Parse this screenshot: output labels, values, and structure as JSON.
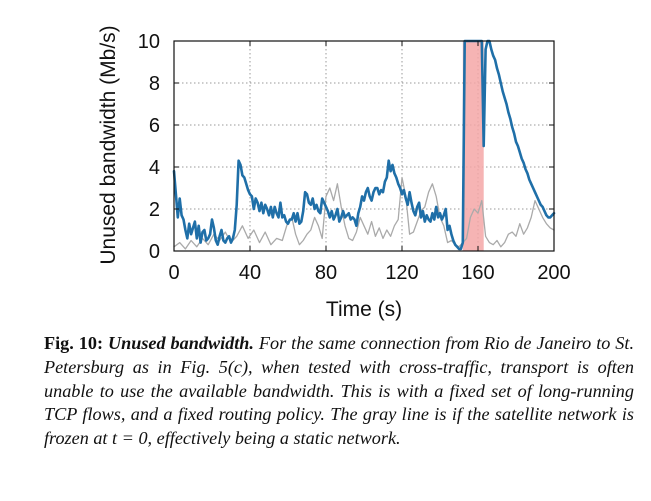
{
  "chart_data": {
    "type": "line",
    "xlabel": "Time (s)",
    "ylabel": "Unused bandwidth (Mb/s)",
    "xlim": [
      0,
      200
    ],
    "ylim": [
      0,
      10
    ],
    "x_ticks": [
      "0",
      "40",
      "80",
      "120",
      "160",
      "200"
    ],
    "y_ticks": [
      "0",
      "2",
      "4",
      "6",
      "8",
      "10"
    ],
    "grid": true,
    "highlight": {
      "x_start": 152,
      "x_end": 163,
      "color": "#f4a7a7"
    },
    "series": [
      {
        "color": "#1f6fa8",
        "points": [
          [
            0,
            3.8
          ],
          [
            1,
            2.7
          ],
          [
            2,
            1.6
          ],
          [
            3,
            2.5
          ],
          [
            4,
            1.7
          ],
          [
            5,
            1.5
          ],
          [
            6,
            1.0
          ],
          [
            7,
            0.6
          ],
          [
            8,
            1.3
          ],
          [
            9,
            0.8
          ],
          [
            10,
            1.1
          ],
          [
            11,
            1.4
          ],
          [
            12,
            0.6
          ],
          [
            13,
            1.2
          ],
          [
            14,
            0.4
          ],
          [
            15,
            0.9
          ],
          [
            16,
            1.0
          ],
          [
            17,
            0.5
          ],
          [
            18,
            0.6
          ],
          [
            19,
            0.8
          ],
          [
            20,
            1.5
          ],
          [
            21,
            1.1
          ],
          [
            22,
            0.5
          ],
          [
            23,
            0.3
          ],
          [
            24,
            0.7
          ],
          [
            25,
            1.0
          ],
          [
            26,
            0.5
          ],
          [
            27,
            0.4
          ],
          [
            28,
            0.6
          ],
          [
            29,
            0.7
          ],
          [
            30,
            0.4
          ],
          [
            31,
            0.6
          ],
          [
            32,
            1.0
          ],
          [
            33,
            2.2
          ],
          [
            34,
            4.3
          ],
          [
            35,
            4.1
          ],
          [
            36,
            3.6
          ],
          [
            37,
            3.5
          ],
          [
            38,
            3.2
          ],
          [
            39,
            2.9
          ],
          [
            40,
            2.7
          ],
          [
            41,
            2.6
          ],
          [
            42,
            2.0
          ],
          [
            43,
            2.5
          ],
          [
            44,
            2.3
          ],
          [
            45,
            1.9
          ],
          [
            46,
            2.3
          ],
          [
            47,
            1.8
          ],
          [
            48,
            2.2
          ],
          [
            49,
            2.0
          ],
          [
            50,
            1.7
          ],
          [
            51,
            2.1
          ],
          [
            52,
            1.6
          ],
          [
            53,
            2.1
          ],
          [
            54,
            1.8
          ],
          [
            55,
            1.6
          ],
          [
            56,
            2.3
          ],
          [
            57,
            1.6
          ],
          [
            58,
            1.7
          ],
          [
            59,
            1.4
          ],
          [
            60,
            1.3
          ],
          [
            61,
            1.5
          ],
          [
            62,
            1.5
          ],
          [
            63,
            1.8
          ],
          [
            64,
            1.4
          ],
          [
            65,
            1.8
          ],
          [
            66,
            1.3
          ],
          [
            67,
            1.4
          ],
          [
            68,
            1.9
          ],
          [
            69,
            2.8
          ],
          [
            70,
            2.7
          ],
          [
            71,
            2.3
          ],
          [
            72,
            2.2
          ],
          [
            73,
            2.5
          ],
          [
            74,
            2.0
          ],
          [
            75,
            2.2
          ],
          [
            76,
            1.9
          ],
          [
            77,
            1.8
          ],
          [
            78,
            2.5
          ],
          [
            79,
            2.3
          ],
          [
            80,
            2.1
          ],
          [
            81,
            1.9
          ],
          [
            82,
            1.6
          ],
          [
            83,
            1.9
          ],
          [
            84,
            1.5
          ],
          [
            85,
            1.7
          ],
          [
            86,
            2.0
          ],
          [
            87,
            1.4
          ],
          [
            88,
            1.6
          ],
          [
            89,
            1.9
          ],
          [
            90,
            1.6
          ],
          [
            91,
            1.7
          ],
          [
            92,
            1.8
          ],
          [
            93,
            1.5
          ],
          [
            94,
            1.6
          ],
          [
            95,
            1.5
          ],
          [
            96,
            1.2
          ],
          [
            97,
            1.8
          ],
          [
            98,
            2.1
          ],
          [
            99,
            2.6
          ],
          [
            100,
            2.4
          ],
          [
            101,
            2.8
          ],
          [
            102,
            3.0
          ],
          [
            103,
            2.6
          ],
          [
            104,
            2.4
          ],
          [
            105,
            2.8
          ],
          [
            106,
            3.0
          ],
          [
            107,
            3.0
          ],
          [
            108,
            2.7
          ],
          [
            109,
            2.9
          ],
          [
            110,
            2.8
          ],
          [
            111,
            3.3
          ],
          [
            112,
            3.5
          ],
          [
            113,
            4.3
          ],
          [
            114,
            3.8
          ],
          [
            115,
            4.1
          ],
          [
            116,
            3.7
          ],
          [
            117,
            3.5
          ],
          [
            118,
            3.2
          ],
          [
            119,
            3.0
          ],
          [
            120,
            2.7
          ],
          [
            121,
            2.9
          ],
          [
            122,
            2.5
          ],
          [
            123,
            2.2
          ],
          [
            124,
            2.8
          ],
          [
            125,
            2.3
          ],
          [
            126,
            1.9
          ],
          [
            127,
            1.7
          ],
          [
            128,
            2.1
          ],
          [
            129,
            2.3
          ],
          [
            130,
            1.6
          ],
          [
            131,
            1.9
          ],
          [
            132,
            1.4
          ],
          [
            133,
            1.7
          ],
          [
            134,
            1.5
          ],
          [
            135,
            1.4
          ],
          [
            136,
            1.8
          ],
          [
            137,
            1.5
          ],
          [
            138,
            2.1
          ],
          [
            139,
            1.6
          ],
          [
            140,
            1.8
          ],
          [
            141,
            1.5
          ],
          [
            142,
            1.7
          ],
          [
            143,
            2.0
          ],
          [
            144,
            1.0
          ],
          [
            145,
            1.2
          ],
          [
            146,
            0.8
          ],
          [
            147,
            0.5
          ],
          [
            148,
            0.3
          ],
          [
            149,
            0.2
          ],
          [
            150,
            0.1
          ],
          [
            151,
            0.1
          ],
          [
            152,
            0.4
          ],
          [
            153,
            10
          ],
          [
            154,
            10
          ],
          [
            155,
            10
          ],
          [
            156,
            10
          ],
          [
            157,
            10
          ],
          [
            158,
            10
          ],
          [
            159,
            10
          ],
          [
            160,
            10
          ],
          [
            161,
            10
          ],
          [
            162,
            10
          ],
          [
            163,
            5.0
          ],
          [
            164,
            9.6
          ],
          [
            165,
            10
          ],
          [
            166,
            10
          ],
          [
            167,
            9.6
          ],
          [
            168,
            9.3
          ],
          [
            169,
            9.1
          ],
          [
            170,
            8.7
          ],
          [
            171,
            8.4
          ],
          [
            172,
            8.0
          ],
          [
            173,
            7.6
          ],
          [
            174,
            7.3
          ],
          [
            175,
            7.0
          ],
          [
            176,
            6.6
          ],
          [
            177,
            6.3
          ],
          [
            178,
            5.9
          ],
          [
            179,
            5.6
          ],
          [
            180,
            5.2
          ],
          [
            181,
            5.0
          ],
          [
            182,
            4.7
          ],
          [
            183,
            4.4
          ],
          [
            184,
            4.2
          ],
          [
            185,
            3.9
          ],
          [
            186,
            3.7
          ],
          [
            187,
            3.4
          ],
          [
            188,
            3.2
          ],
          [
            189,
            3.0
          ],
          [
            190,
            2.8
          ],
          [
            191,
            2.6
          ],
          [
            192,
            2.4
          ],
          [
            193,
            2.2
          ],
          [
            194,
            2.1
          ],
          [
            195,
            1.9
          ],
          [
            196,
            1.7
          ],
          [
            197,
            1.6
          ],
          [
            198,
            1.6
          ],
          [
            199,
            1.7
          ],
          [
            200,
            1.8
          ]
        ]
      },
      {
        "color": "#aaaaaa",
        "points": [
          [
            0,
            0.2
          ],
          [
            3,
            0.4
          ],
          [
            6,
            0.1
          ],
          [
            9,
            0.5
          ],
          [
            12,
            0.2
          ],
          [
            15,
            0.6
          ],
          [
            18,
            0.3
          ],
          [
            21,
            0.8
          ],
          [
            24,
            0.5
          ],
          [
            27,
            0.9
          ],
          [
            30,
            0.4
          ],
          [
            33,
            0.7
          ],
          [
            36,
            1.2
          ],
          [
            39,
            0.6
          ],
          [
            42,
            1.0
          ],
          [
            45,
            0.4
          ],
          [
            48,
            0.9
          ],
          [
            51,
            0.3
          ],
          [
            54,
            0.6
          ],
          [
            57,
            0.5
          ],
          [
            60,
            1.4
          ],
          [
            62,
            1.6
          ],
          [
            64,
            0.8
          ],
          [
            66,
            0.3
          ],
          [
            68,
            0.5
          ],
          [
            70,
            0.8
          ],
          [
            72,
            1.0
          ],
          [
            74,
            1.6
          ],
          [
            76,
            1.2
          ],
          [
            78,
            0.6
          ],
          [
            80,
            2.6
          ],
          [
            82,
            3.0
          ],
          [
            84,
            2.4
          ],
          [
            86,
            3.2
          ],
          [
            88,
            2.1
          ],
          [
            90,
            1.2
          ],
          [
            92,
            0.6
          ],
          [
            94,
            0.5
          ],
          [
            96,
            0.9
          ],
          [
            98,
            1.6
          ],
          [
            100,
            1.2
          ],
          [
            102,
            0.8
          ],
          [
            104,
            1.4
          ],
          [
            106,
            0.7
          ],
          [
            108,
            1.1
          ],
          [
            110,
            0.6
          ],
          [
            112,
            1.0
          ],
          [
            114,
            0.7
          ],
          [
            116,
            1.2
          ],
          [
            118,
            1.5
          ],
          [
            120,
            3.5
          ],
          [
            122,
            2.6
          ],
          [
            124,
            0.8
          ],
          [
            126,
            0.9
          ],
          [
            128,
            1.4
          ],
          [
            130,
            1.9
          ],
          [
            132,
            2.1
          ],
          [
            134,
            2.8
          ],
          [
            136,
            3.2
          ],
          [
            138,
            2.6
          ],
          [
            140,
            1.6
          ],
          [
            142,
            1.2
          ],
          [
            144,
            0.4
          ],
          [
            146,
            0.5
          ],
          [
            148,
            0.3
          ],
          [
            150,
            0.2
          ],
          [
            152,
            0.4
          ],
          [
            154,
            0.6
          ],
          [
            156,
            1.6
          ],
          [
            158,
            2.0
          ],
          [
            160,
            1.8
          ],
          [
            162,
            2.4
          ],
          [
            164,
            0.7
          ],
          [
            166,
            0.4
          ],
          [
            168,
            0.3
          ],
          [
            170,
            0.5
          ],
          [
            172,
            0.2
          ],
          [
            174,
            0.4
          ],
          [
            176,
            0.8
          ],
          [
            178,
            0.9
          ],
          [
            180,
            0.7
          ],
          [
            182,
            1.3
          ],
          [
            184,
            0.8
          ],
          [
            186,
            1.1
          ],
          [
            188,
            1.6
          ],
          [
            190,
            2.4
          ],
          [
            192,
            2.0
          ],
          [
            194,
            1.6
          ],
          [
            196,
            1.3
          ],
          [
            198,
            1.1
          ],
          [
            200,
            1.0
          ]
        ]
      }
    ]
  },
  "caption": {
    "label": "Fig. 10:",
    "title": "Unused bandwidth.",
    "body": "For the same connection from Rio de Janeiro to St. Petersburg as in Fig. 5(c), when tested with cross-traffic, transport is often unable to use the available bandwidth. This is with a fixed set of long-running TCP flows, and a fixed routing policy. The gray line is if the satellite network is frozen at t = 0, effectively being a static network."
  }
}
